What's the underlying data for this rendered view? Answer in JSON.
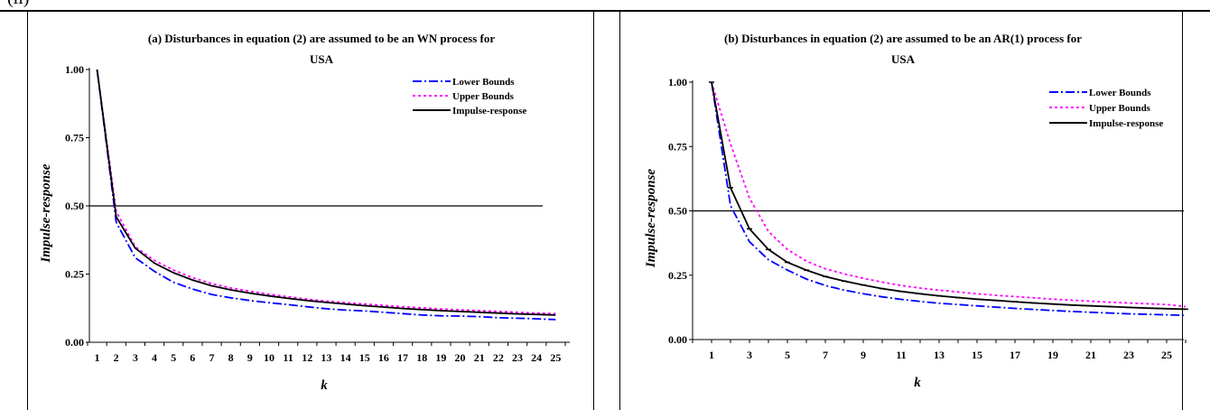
{
  "header": {
    "text": "(ii)"
  },
  "chart_data": [
    {
      "type": "line",
      "title": "(a) Disturbances in equation (2) are assumed to be an WN process for",
      "subtitle": "USA",
      "xlabel": "k",
      "ylabel": "Impulse-response",
      "ylim": [
        0,
        1
      ],
      "x": [
        1,
        2,
        3,
        4,
        5,
        6,
        7,
        8,
        9,
        10,
        11,
        12,
        13,
        14,
        15,
        16,
        17,
        18,
        19,
        20,
        21,
        22,
        23,
        24,
        25
      ],
      "x_tick_labels": [
        "1",
        "2",
        "3",
        "4",
        "5",
        "6",
        "7",
        "8",
        "9",
        "10",
        "11",
        "12",
        "13",
        "14",
        "15",
        "16",
        "17",
        "18",
        "19",
        "20",
        "21",
        "22",
        "23",
        "24",
        "25"
      ],
      "y_ticks": [
        0,
        0.25,
        0.5,
        0.75,
        1
      ],
      "y_tick_labels": [
        "0.00",
        "0.25",
        "0.50",
        "0.75",
        "1.00"
      ],
      "reference_line": 0.5,
      "legend_position": "top-right",
      "series": [
        {
          "name": "Lower Bounds",
          "color": "#0000ff",
          "style": "dash-dot",
          "values": [
            1.0,
            0.44,
            0.31,
            0.26,
            0.22,
            0.195,
            0.175,
            0.163,
            0.153,
            0.145,
            0.138,
            0.13,
            0.123,
            0.118,
            0.115,
            0.11,
            0.105,
            0.1,
            0.097,
            0.096,
            0.094,
            0.09,
            0.088,
            0.086,
            0.083
          ]
        },
        {
          "name": "Upper Bounds",
          "color": "#ff00ff",
          "style": "dotted",
          "values": [
            1.0,
            0.48,
            0.35,
            0.3,
            0.265,
            0.237,
            0.215,
            0.199,
            0.187,
            0.176,
            0.167,
            0.158,
            0.151,
            0.145,
            0.14,
            0.135,
            0.13,
            0.126,
            0.122,
            0.119,
            0.116,
            0.113,
            0.11,
            0.107,
            0.105
          ]
        },
        {
          "name": "Impulse-response",
          "color": "#000000",
          "style": "solid",
          "values": [
            1.0,
            0.46,
            0.345,
            0.29,
            0.255,
            0.228,
            0.207,
            0.192,
            0.18,
            0.17,
            0.161,
            0.153,
            0.146,
            0.14,
            0.134,
            0.129,
            0.124,
            0.12,
            0.116,
            0.113,
            0.11,
            0.107,
            0.104,
            0.102,
            0.1
          ]
        }
      ]
    },
    {
      "type": "line",
      "title": "(b) Disturbances in equation (2) are assumed to be an AR(1) process for",
      "subtitle": "USA",
      "xlabel": "k",
      "ylabel": "Impulse-response",
      "ylim": [
        0,
        1
      ],
      "x": [
        1,
        2,
        3,
        4,
        5,
        6,
        7,
        8,
        9,
        10,
        11,
        12,
        13,
        14,
        15,
        16,
        17,
        18,
        19,
        20,
        21,
        22,
        23,
        24,
        25,
        26
      ],
      "x_tick_labels": [
        "1",
        "3",
        "5",
        "7",
        "9",
        "11",
        "13",
        "15",
        "17",
        "19",
        "21",
        "23",
        "25"
      ],
      "x_tick_values": [
        1,
        3,
        5,
        7,
        9,
        11,
        13,
        15,
        17,
        19,
        21,
        23,
        25
      ],
      "y_ticks": [
        0,
        0.25,
        0.5,
        0.75,
        1
      ],
      "y_tick_labels": [
        "0.00",
        "0.25",
        "0.50",
        "0.75",
        "1.00"
      ],
      "reference_line": 0.5,
      "legend_position": "top-right",
      "series": [
        {
          "name": "Lower Bounds",
          "color": "#0000ff",
          "style": "dash-dot",
          "values": [
            1.0,
            0.52,
            0.38,
            0.31,
            0.27,
            0.235,
            0.21,
            0.192,
            0.178,
            0.166,
            0.156,
            0.148,
            0.141,
            0.136,
            0.131,
            0.126,
            0.121,
            0.117,
            0.113,
            0.109,
            0.106,
            0.103,
            0.1,
            0.098,
            0.096,
            0.094
          ]
        },
        {
          "name": "Upper Bounds",
          "color": "#ff00ff",
          "style": "dotted",
          "values": [
            1.0,
            0.76,
            0.55,
            0.42,
            0.35,
            0.305,
            0.275,
            0.255,
            0.238,
            0.223,
            0.21,
            0.2,
            0.192,
            0.185,
            0.178,
            0.172,
            0.167,
            0.162,
            0.157,
            0.153,
            0.149,
            0.145,
            0.142,
            0.139,
            0.136,
            0.128
          ]
        },
        {
          "name": "Impulse-response",
          "color": "#000000",
          "style": "solid",
          "values": [
            1.0,
            0.59,
            0.43,
            0.35,
            0.3,
            0.27,
            0.245,
            0.227,
            0.212,
            0.198,
            0.187,
            0.178,
            0.17,
            0.163,
            0.157,
            0.152,
            0.147,
            0.142,
            0.138,
            0.134,
            0.131,
            0.128,
            0.125,
            0.122,
            0.12,
            0.118
          ]
        }
      ]
    }
  ]
}
